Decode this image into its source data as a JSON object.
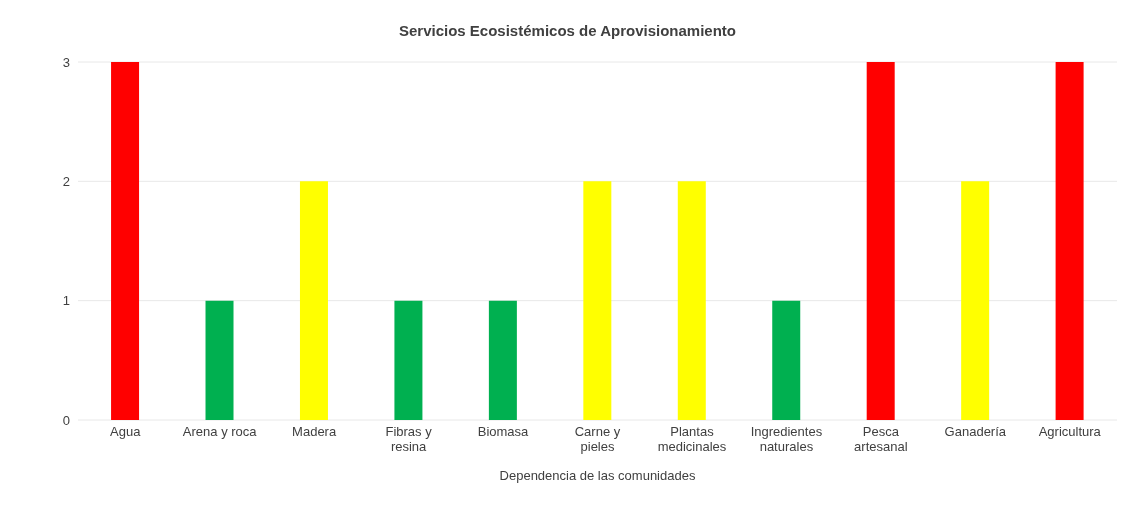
{
  "chart_data": {
    "type": "bar",
    "title": "Servicios Ecosistémicos de Aprovisionamiento",
    "xlabel": "Dependencia de las comunidades",
    "categories": [
      "Agua",
      "Arena y roca",
      "Madera",
      "Fibras y resina",
      "Biomasa",
      "Carne y pieles",
      "Plantas medicinales",
      "Ingredientes naturales",
      "Pesca artesanal",
      "Ganadería",
      "Agricultura"
    ],
    "values": [
      3,
      1,
      2,
      1,
      1,
      2,
      2,
      1,
      3,
      2,
      3
    ],
    "colors": [
      "#ff0000",
      "#00b050",
      "#ffff00",
      "#00b050",
      "#00b050",
      "#ffff00",
      "#ffff00",
      "#00b050",
      "#ff0000",
      "#ffff00",
      "#ff0000"
    ],
    "ylim": [
      0,
      3
    ],
    "yticks": [
      0,
      1,
      2,
      3
    ],
    "grid": "y",
    "legend": false
  }
}
